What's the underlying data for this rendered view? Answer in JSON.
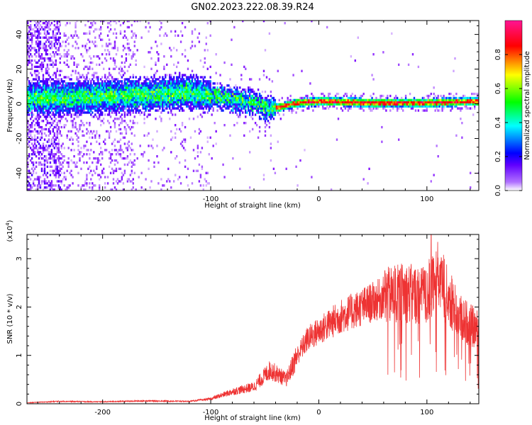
{
  "title": "GN02.2023.222.08.39.R24",
  "colors": {
    "snr_line": "#ee3333",
    "spectrogram_colormap": [
      "#ffffff",
      "#9f00ff",
      "#0000ff",
      "#00ffff",
      "#00ff00",
      "#ffff00",
      "#ff0000",
      "#ff00aa"
    ]
  },
  "chart_data": [
    {
      "type": "heatmap",
      "xlabel": "Height of straight line (km)",
      "ylabel": "Frequency (Hz)",
      "xlim": [
        -270,
        148
      ],
      "ylim": [
        -50,
        48
      ],
      "x_ticks": [
        -200,
        -100,
        0,
        100
      ],
      "x_tick_labels": [
        "-200",
        "-100",
        "0",
        "100"
      ],
      "y_ticks": [
        -40,
        -20,
        0,
        20,
        40
      ],
      "y_tick_labels": [
        "-40",
        "-20",
        "0",
        "20",
        "40"
      ],
      "colorbar": {
        "label": "Normalized spectral amplitude",
        "range": [
          0,
          1
        ],
        "ticks": [
          0.0,
          0.2,
          0.4,
          0.6,
          0.8
        ],
        "tick_labels": [
          "0.0",
          "0.2",
          "0.4",
          "0.6",
          "0.8"
        ]
      },
      "main_band_center_hz": [
        {
          "x": -240,
          "y": 3
        },
        {
          "x": -200,
          "y": 4
        },
        {
          "x": -150,
          "y": 5
        },
        {
          "x": -120,
          "y": 6
        },
        {
          "x": -100,
          "y": 4
        },
        {
          "x": -80,
          "y": 2
        },
        {
          "x": -60,
          "y": 0
        },
        {
          "x": -45,
          "y": -4
        },
        {
          "x": -35,
          "y": -2
        },
        {
          "x": -20,
          "y": 0
        },
        {
          "x": 0,
          "y": 1
        },
        {
          "x": 50,
          "y": 0
        },
        {
          "x": 100,
          "y": 0
        },
        {
          "x": 148,
          "y": 1
        }
      ],
      "grid": false
    },
    {
      "type": "line",
      "xlabel": "Height of straight line (km)",
      "ylabel": "SNR (10 * v/v)",
      "scale_label": "(x10^4)",
      "xlim": [
        -270,
        148
      ],
      "ylim": [
        0,
        3.5
      ],
      "x_ticks": [
        -200,
        -100,
        0,
        100
      ],
      "x_tick_labels": [
        "-200",
        "-100",
        "0",
        "100"
      ],
      "y_ticks": [
        0,
        1,
        2,
        3
      ],
      "y_tick_labels": [
        "0",
        "1",
        "2",
        "3"
      ],
      "series": [
        {
          "envelope": [
            {
              "x": -270,
              "y": 0.02
            },
            {
              "x": -240,
              "y": 0.05
            },
            {
              "x": -200,
              "y": 0.04
            },
            {
              "x": -160,
              "y": 0.06
            },
            {
              "x": -120,
              "y": 0.05
            },
            {
              "x": -100,
              "y": 0.1
            },
            {
              "x": -80,
              "y": 0.25
            },
            {
              "x": -60,
              "y": 0.35
            },
            {
              "x": -45,
              "y": 0.7
            },
            {
              "x": -30,
              "y": 0.5
            },
            {
              "x": -20,
              "y": 1.0
            },
            {
              "x": -10,
              "y": 1.35
            },
            {
              "x": 0,
              "y": 1.5
            },
            {
              "x": 20,
              "y": 1.8
            },
            {
              "x": 40,
              "y": 2.0
            },
            {
              "x": 60,
              "y": 2.2
            },
            {
              "x": 80,
              "y": 2.3
            },
            {
              "x": 100,
              "y": 2.2
            },
            {
              "x": 110,
              "y": 2.6
            },
            {
              "x": 130,
              "y": 1.8
            },
            {
              "x": 148,
              "y": 1.5
            }
          ],
          "peak": {
            "x": 104,
            "y": 3.5
          }
        }
      ],
      "grid": false
    }
  ]
}
